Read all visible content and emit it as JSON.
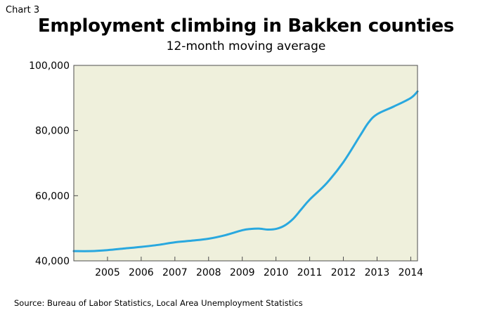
{
  "header": {
    "chart_number": "Chart 3",
    "title": "Employment climbing in Bakken counties",
    "subtitle": "12-month moving average"
  },
  "footer": {
    "source": "Source: Bureau of Labor Statistics, Local Area Unemployment Statistics"
  },
  "colors": {
    "plot_background": "#EFF0DC",
    "line": "#29A8DF",
    "frame": "#4D4D4D"
  },
  "chart_data": {
    "type": "line",
    "title": "Employment climbing in Bakken counties",
    "subtitle": "12-month moving average",
    "xlabel": "",
    "ylabel": "",
    "xlim": [
      2004.0,
      2014.2
    ],
    "ylim": [
      40000,
      100000
    ],
    "grid": false,
    "x_tick_labels": [
      "2005",
      "2006",
      "2007",
      "2008",
      "2009",
      "2010",
      "2011",
      "2012",
      "2013",
      "2014"
    ],
    "y_tick_labels": [
      "40,000",
      "60,000",
      "80,000",
      "100,000"
    ],
    "series": [
      {
        "color": "#29A8DF",
        "x": [
          2004.0,
          2004.5,
          2005.0,
          2005.5,
          2006.0,
          2006.5,
          2007.0,
          2007.5,
          2008.0,
          2008.5,
          2009.0,
          2009.25,
          2009.5,
          2009.75,
          2010.0,
          2010.25,
          2010.5,
          2010.75,
          2011.0,
          2011.5,
          2012.0,
          2012.5,
          2012.75,
          2013.0,
          2013.5,
          2014.0,
          2014.2
        ],
        "y": [
          43000,
          43000,
          43300,
          43800,
          44300,
          44900,
          45700,
          46200,
          46800,
          47900,
          49400,
          49800,
          49900,
          49600,
          49800,
          50800,
          52800,
          55800,
          58800,
          63800,
          70300,
          78500,
          82500,
          85000,
          87400,
          90000,
          92000
        ]
      }
    ]
  }
}
